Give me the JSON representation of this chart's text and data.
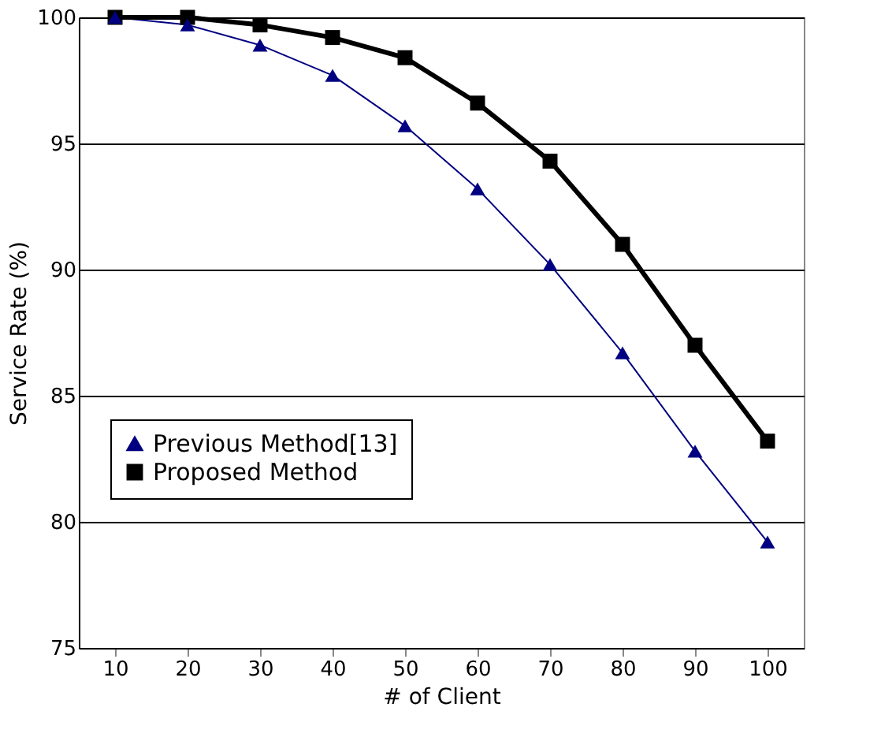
{
  "chart_data": {
    "type": "line",
    "xlabel": "# of Client",
    "ylabel": "Service Rate (%)",
    "categories": [
      "10",
      "20",
      "30",
      "40",
      "50",
      "60",
      "70",
      "80",
      "90",
      "100"
    ],
    "series": [
      {
        "name": "Previous Method[13]",
        "color": "#000080",
        "marker": "triangle",
        "values": [
          100,
          99.7,
          98.9,
          97.7,
          95.7,
          93.2,
          90.2,
          86.7,
          82.8,
          79.2
        ]
      },
      {
        "name": "Proposed Method",
        "color": "#000000",
        "marker": "square",
        "values": [
          100,
          100,
          99.7,
          99.2,
          98.4,
          96.6,
          94.3,
          91.0,
          87.0,
          83.2
        ]
      }
    ],
    "ylim": [
      75,
      100
    ],
    "yticks": [
      75,
      80,
      85,
      90,
      95,
      100
    ],
    "grid": "y",
    "legend": "bottom left",
    "line_style": "solid"
  }
}
